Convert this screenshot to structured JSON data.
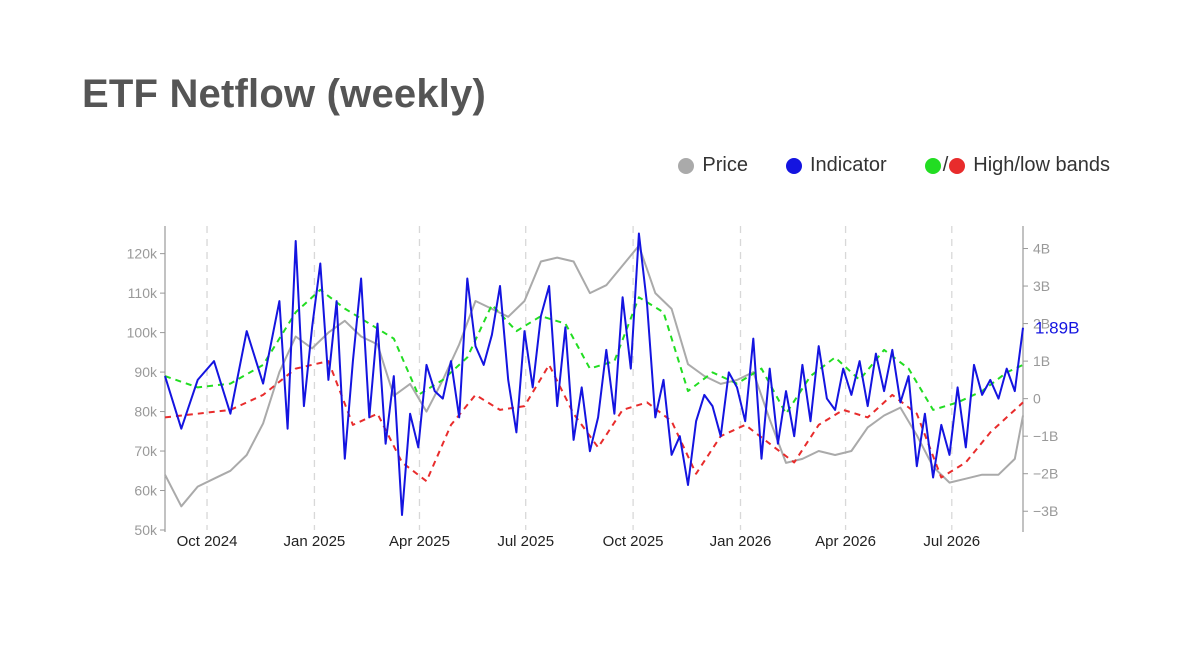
{
  "title": "ETF Netflow (weekly)",
  "legend": [
    {
      "label": "Price",
      "color": "#aaaaaa"
    },
    {
      "label": "Indicator",
      "color": "#1414e0"
    },
    {
      "label": "High/low bands",
      "color": "#22dd22",
      "color2": "#e82c2c",
      "sep": "/"
    }
  ],
  "colors": {
    "price": "#aaaaaa",
    "indicator": "#1414e0",
    "high": "#22dd22",
    "low": "#e82c2c",
    "axis": "#999999",
    "grid": "#d8d8d8"
  },
  "chart_data": {
    "type": "line",
    "x_ticks": [
      "Oct 2024",
      "Jan 2025",
      "Apr 2025",
      "Jul 2025",
      "Oct 2025",
      "Jan 2026",
      "Apr 2026",
      "Jul 2026"
    ],
    "x_start": "2024-08-26",
    "x_end": "2026-08-31",
    "grid": "vertical dashed at month ticks",
    "y_left": {
      "label": "",
      "range": [
        50000,
        127000
      ],
      "ticks": [
        "50k",
        "60k",
        "70k",
        "80k",
        "90k",
        "100k",
        "110k",
        "120k"
      ]
    },
    "y_right": {
      "label": "",
      "range": [
        -3.5,
        4.6
      ],
      "ticks": [
        "−3B",
        "−2B",
        "−1B",
        "0",
        "1B",
        "2B",
        "3B",
        "4B"
      ]
    },
    "last_value_label": "1.89B",
    "series": [
      {
        "name": "Price",
        "axis": "left",
        "points": [
          [
            "2024-08-26",
            64000
          ],
          [
            "2024-09-09",
            56000
          ],
          [
            "2024-09-23",
            61000
          ],
          [
            "2024-10-07",
            63000
          ],
          [
            "2024-10-21",
            65000
          ],
          [
            "2024-11-04",
            69000
          ],
          [
            "2024-11-18",
            77000
          ],
          [
            "2024-12-02",
            90000
          ],
          [
            "2024-12-16",
            99000
          ],
          [
            "2024-12-30",
            96000
          ],
          [
            "2025-01-13",
            100000
          ],
          [
            "2025-01-27",
            103000
          ],
          [
            "2025-02-10",
            99000
          ],
          [
            "2025-02-24",
            97000
          ],
          [
            "2025-03-10",
            84000
          ],
          [
            "2025-03-24",
            87000
          ],
          [
            "2025-04-07",
            80000
          ],
          [
            "2025-04-21",
            88000
          ],
          [
            "2025-05-05",
            97000
          ],
          [
            "2025-05-19",
            108000
          ],
          [
            "2025-06-02",
            106000
          ],
          [
            "2025-06-16",
            104000
          ],
          [
            "2025-06-30",
            108000
          ],
          [
            "2025-07-14",
            118000
          ],
          [
            "2025-07-28",
            119000
          ],
          [
            "2025-08-11",
            118000
          ],
          [
            "2025-08-25",
            110000
          ],
          [
            "2025-09-08",
            112000
          ],
          [
            "2025-09-22",
            117000
          ],
          [
            "2025-10-06",
            122000
          ],
          [
            "2025-10-20",
            110000
          ],
          [
            "2025-11-03",
            106000
          ],
          [
            "2025-11-17",
            92000
          ],
          [
            "2025-12-01",
            89000
          ],
          [
            "2025-12-15",
            87000
          ],
          [
            "2025-12-29",
            88000
          ],
          [
            "2026-01-12",
            90000
          ],
          [
            "2026-01-26",
            78000
          ],
          [
            "2026-02-09",
            67000
          ],
          [
            "2026-02-23",
            68000
          ],
          [
            "2026-03-09",
            70000
          ],
          [
            "2026-03-23",
            69000
          ],
          [
            "2026-04-06",
            70000
          ],
          [
            "2026-04-20",
            76000
          ],
          [
            "2026-05-04",
            79000
          ],
          [
            "2026-05-18",
            81000
          ],
          [
            "2026-06-01",
            74000
          ],
          [
            "2026-06-15",
            66000
          ],
          [
            "2026-06-29",
            62000
          ],
          [
            "2026-07-13",
            63000
          ],
          [
            "2026-07-27",
            64000
          ],
          [
            "2026-08-10",
            64000
          ],
          [
            "2026-08-24",
            68000
          ],
          [
            "2026-08-31",
            79000
          ]
        ]
      },
      {
        "name": "Indicator",
        "axis": "right",
        "points": [
          [
            "2024-08-26",
            0.6
          ],
          [
            "2024-09-09",
            -0.8
          ],
          [
            "2024-09-23",
            0.5
          ],
          [
            "2024-10-07",
            1.0
          ],
          [
            "2024-10-21",
            -0.4
          ],
          [
            "2024-11-04",
            1.8
          ],
          [
            "2024-11-18",
            0.4
          ],
          [
            "2024-12-02",
            2.6
          ],
          [
            "2024-12-09",
            -0.8
          ],
          [
            "2024-12-16",
            4.2
          ],
          [
            "2024-12-23",
            -0.2
          ],
          [
            "2024-12-30",
            1.9
          ],
          [
            "2025-01-06",
            3.6
          ],
          [
            "2025-01-13",
            0.5
          ],
          [
            "2025-01-20",
            2.6
          ],
          [
            "2025-01-27",
            -1.6
          ],
          [
            "2025-02-03",
            1.0
          ],
          [
            "2025-02-10",
            3.2
          ],
          [
            "2025-02-17",
            -0.5
          ],
          [
            "2025-02-24",
            2.0
          ],
          [
            "2025-03-03",
            -1.2
          ],
          [
            "2025-03-10",
            0.6
          ],
          [
            "2025-03-17",
            -3.1
          ],
          [
            "2025-03-24",
            -0.4
          ],
          [
            "2025-03-31",
            -1.3
          ],
          [
            "2025-04-07",
            0.9
          ],
          [
            "2025-04-14",
            0.2
          ],
          [
            "2025-04-21",
            0.0
          ],
          [
            "2025-04-28",
            1.0
          ],
          [
            "2025-05-05",
            -0.5
          ],
          [
            "2025-05-12",
            3.2
          ],
          [
            "2025-05-19",
            1.4
          ],
          [
            "2025-05-26",
            0.9
          ],
          [
            "2025-06-02",
            1.7
          ],
          [
            "2025-06-09",
            3.0
          ],
          [
            "2025-06-16",
            0.5
          ],
          [
            "2025-06-23",
            -0.9
          ],
          [
            "2025-06-30",
            1.8
          ],
          [
            "2025-07-07",
            0.3
          ],
          [
            "2025-07-14",
            2.2
          ],
          [
            "2025-07-21",
            3.0
          ],
          [
            "2025-07-28",
            -0.2
          ],
          [
            "2025-08-04",
            1.9
          ],
          [
            "2025-08-11",
            -1.1
          ],
          [
            "2025-08-18",
            0.3
          ],
          [
            "2025-08-25",
            -1.4
          ],
          [
            "2025-09-01",
            -0.5
          ],
          [
            "2025-09-08",
            1.3
          ],
          [
            "2025-09-15",
            -0.4
          ],
          [
            "2025-09-22",
            2.7
          ],
          [
            "2025-09-29",
            0.8
          ],
          [
            "2025-10-06",
            4.4
          ],
          [
            "2025-10-13",
            2.5
          ],
          [
            "2025-10-20",
            -0.5
          ],
          [
            "2025-10-27",
            0.5
          ],
          [
            "2025-11-03",
            -1.5
          ],
          [
            "2025-11-10",
            -1.0
          ],
          [
            "2025-11-17",
            -2.3
          ],
          [
            "2025-11-24",
            -0.6
          ],
          [
            "2025-12-01",
            0.1
          ],
          [
            "2025-12-08",
            -0.2
          ],
          [
            "2025-12-15",
            -1.0
          ],
          [
            "2025-12-22",
            0.7
          ],
          [
            "2025-12-29",
            0.3
          ],
          [
            "2026-01-05",
            -0.6
          ],
          [
            "2026-01-12",
            1.6
          ],
          [
            "2026-01-19",
            -1.6
          ],
          [
            "2026-01-26",
            0.8
          ],
          [
            "2026-02-02",
            -1.2
          ],
          [
            "2026-02-09",
            0.2
          ],
          [
            "2026-02-16",
            -1.0
          ],
          [
            "2026-02-23",
            0.9
          ],
          [
            "2026-03-02",
            -0.6
          ],
          [
            "2026-03-09",
            1.4
          ],
          [
            "2026-03-16",
            0.0
          ],
          [
            "2026-03-23",
            -0.3
          ],
          [
            "2026-03-30",
            0.8
          ],
          [
            "2026-04-06",
            0.1
          ],
          [
            "2026-04-13",
            1.0
          ],
          [
            "2026-04-20",
            -0.2
          ],
          [
            "2026-04-27",
            1.2
          ],
          [
            "2026-05-04",
            0.2
          ],
          [
            "2026-05-11",
            1.3
          ],
          [
            "2026-05-18",
            -0.1
          ],
          [
            "2026-05-25",
            0.6
          ],
          [
            "2026-06-01",
            -1.8
          ],
          [
            "2026-06-08",
            -0.4
          ],
          [
            "2026-06-15",
            -2.1
          ],
          [
            "2026-06-22",
            -0.7
          ],
          [
            "2026-06-29",
            -1.5
          ],
          [
            "2026-07-06",
            0.3
          ],
          [
            "2026-07-13",
            -1.3
          ],
          [
            "2026-07-20",
            0.9
          ],
          [
            "2026-07-27",
            0.1
          ],
          [
            "2026-08-03",
            0.5
          ],
          [
            "2026-08-10",
            0.0
          ],
          [
            "2026-08-17",
            0.8
          ],
          [
            "2026-08-24",
            0.2
          ],
          [
            "2026-08-31",
            1.89
          ]
        ]
      },
      {
        "name": "High band",
        "axis": "right",
        "dashed": true,
        "points": [
          [
            "2024-08-26",
            0.6
          ],
          [
            "2024-09-23",
            0.3
          ],
          [
            "2024-10-21",
            0.4
          ],
          [
            "2024-11-18",
            0.9
          ],
          [
            "2024-12-16",
            2.3
          ],
          [
            "2025-01-06",
            2.9
          ],
          [
            "2025-01-27",
            2.4
          ],
          [
            "2025-02-17",
            2.0
          ],
          [
            "2025-03-10",
            1.6
          ],
          [
            "2025-03-31",
            0.1
          ],
          [
            "2025-04-21",
            0.5
          ],
          [
            "2025-05-12",
            1.1
          ],
          [
            "2025-06-02",
            2.5
          ],
          [
            "2025-06-23",
            1.8
          ],
          [
            "2025-07-14",
            2.2
          ],
          [
            "2025-08-04",
            2.0
          ],
          [
            "2025-08-25",
            0.8
          ],
          [
            "2025-09-15",
            1.0
          ],
          [
            "2025-10-06",
            2.7
          ],
          [
            "2025-10-27",
            2.3
          ],
          [
            "2025-11-17",
            0.2
          ],
          [
            "2025-12-08",
            0.7
          ],
          [
            "2025-12-29",
            0.4
          ],
          [
            "2026-01-19",
            0.8
          ],
          [
            "2026-02-09",
            -0.4
          ],
          [
            "2026-03-02",
            0.6
          ],
          [
            "2026-03-23",
            1.1
          ],
          [
            "2026-04-13",
            0.5
          ],
          [
            "2026-05-04",
            1.3
          ],
          [
            "2026-05-25",
            0.8
          ],
          [
            "2026-06-15",
            -0.3
          ],
          [
            "2026-07-06",
            -0.1
          ],
          [
            "2026-07-27",
            0.2
          ],
          [
            "2026-08-17",
            0.7
          ],
          [
            "2026-08-31",
            0.9
          ]
        ]
      },
      {
        "name": "Low band",
        "axis": "right",
        "dashed": true,
        "points": [
          [
            "2024-08-26",
            -0.5
          ],
          [
            "2024-09-23",
            -0.4
          ],
          [
            "2024-10-21",
            -0.3
          ],
          [
            "2024-11-18",
            0.1
          ],
          [
            "2024-12-16",
            0.8
          ],
          [
            "2025-01-13",
            1.0
          ],
          [
            "2025-02-03",
            -0.7
          ],
          [
            "2025-02-24",
            -0.4
          ],
          [
            "2025-03-17",
            -1.7
          ],
          [
            "2025-04-07",
            -2.2
          ],
          [
            "2025-04-28",
            -0.7
          ],
          [
            "2025-05-19",
            0.1
          ],
          [
            "2025-06-09",
            -0.3
          ],
          [
            "2025-06-30",
            -0.2
          ],
          [
            "2025-07-21",
            0.9
          ],
          [
            "2025-08-11",
            -0.4
          ],
          [
            "2025-09-01",
            -1.3
          ],
          [
            "2025-09-22",
            -0.3
          ],
          [
            "2025-10-13",
            -0.1
          ],
          [
            "2025-11-03",
            -0.6
          ],
          [
            "2025-11-24",
            -2.0
          ],
          [
            "2025-12-15",
            -1.0
          ],
          [
            "2026-01-05",
            -0.7
          ],
          [
            "2026-01-26",
            -1.2
          ],
          [
            "2026-02-16",
            -1.7
          ],
          [
            "2026-03-09",
            -0.7
          ],
          [
            "2026-03-30",
            -0.3
          ],
          [
            "2026-04-20",
            -0.5
          ],
          [
            "2026-05-11",
            0.1
          ],
          [
            "2026-06-01",
            -0.4
          ],
          [
            "2026-06-22",
            -2.1
          ],
          [
            "2026-07-13",
            -1.7
          ],
          [
            "2026-08-03",
            -0.9
          ],
          [
            "2026-08-31",
            -0.1
          ]
        ]
      }
    ]
  }
}
